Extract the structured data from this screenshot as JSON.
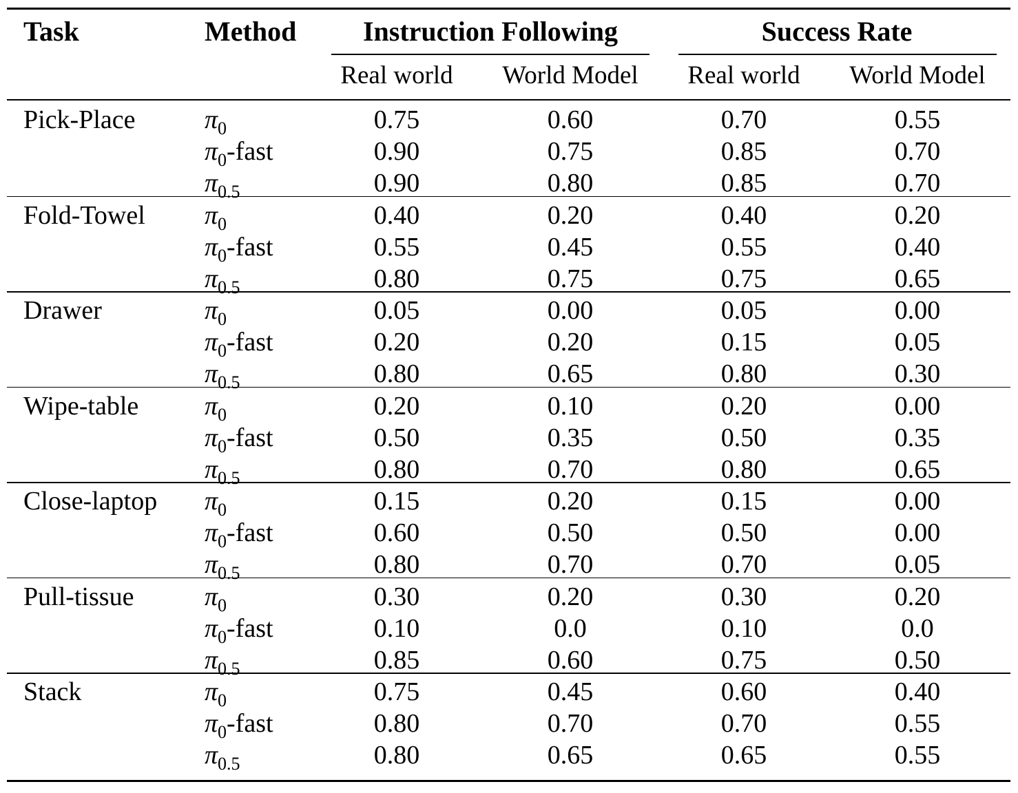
{
  "header": {
    "task": "Task",
    "method": "Method",
    "group_instruction": "Instruction Following",
    "group_success": "Success Rate",
    "sub_columns": [
      "Real world",
      "World Model",
      "Real world",
      "World Model"
    ]
  },
  "method_symbol": "π",
  "methods": [
    {
      "subscript": "0",
      "suffix": ""
    },
    {
      "subscript": "0",
      "suffix": "-fast"
    },
    {
      "subscript": "0.5",
      "suffix": ""
    }
  ],
  "groups": [
    {
      "task": "Pick-Place",
      "rows": [
        [
          "0.75",
          "0.60",
          "0.70",
          "0.55"
        ],
        [
          "0.90",
          "0.75",
          "0.85",
          "0.70"
        ],
        [
          "0.90",
          "0.80",
          "0.85",
          "0.70"
        ]
      ]
    },
    {
      "task": "Fold-Towel",
      "rows": [
        [
          "0.40",
          "0.20",
          "0.40",
          "0.20"
        ],
        [
          "0.55",
          "0.45",
          "0.55",
          "0.40"
        ],
        [
          "0.80",
          "0.75",
          "0.75",
          "0.65"
        ]
      ]
    },
    {
      "task": "Drawer",
      "rows": [
        [
          "0.05",
          "0.00",
          "0.05",
          "0.00"
        ],
        [
          "0.20",
          "0.20",
          "0.15",
          "0.05"
        ],
        [
          "0.80",
          "0.65",
          "0.80",
          "0.30"
        ]
      ]
    },
    {
      "task": "Wipe-table",
      "rows": [
        [
          "0.20",
          "0.10",
          "0.20",
          "0.00"
        ],
        [
          "0.50",
          "0.35",
          "0.50",
          "0.35"
        ],
        [
          "0.80",
          "0.70",
          "0.80",
          "0.65"
        ]
      ]
    },
    {
      "task": "Close-laptop",
      "rows": [
        [
          "0.15",
          "0.20",
          "0.15",
          "0.00"
        ],
        [
          "0.60",
          "0.50",
          "0.50",
          "0.00"
        ],
        [
          "0.80",
          "0.70",
          "0.70",
          "0.05"
        ]
      ]
    },
    {
      "task": "Pull-tissue",
      "rows": [
        [
          "0.30",
          "0.20",
          "0.30",
          "0.20"
        ],
        [
          "0.10",
          "0.0",
          "0.10",
          "0.0"
        ],
        [
          "0.85",
          "0.60",
          "0.75",
          "0.50"
        ]
      ]
    },
    {
      "task": "Stack",
      "rows": [
        [
          "0.75",
          "0.45",
          "0.60",
          "0.40"
        ],
        [
          "0.80",
          "0.70",
          "0.70",
          "0.55"
        ],
        [
          "0.80",
          "0.65",
          "0.65",
          "0.55"
        ]
      ]
    }
  ]
}
